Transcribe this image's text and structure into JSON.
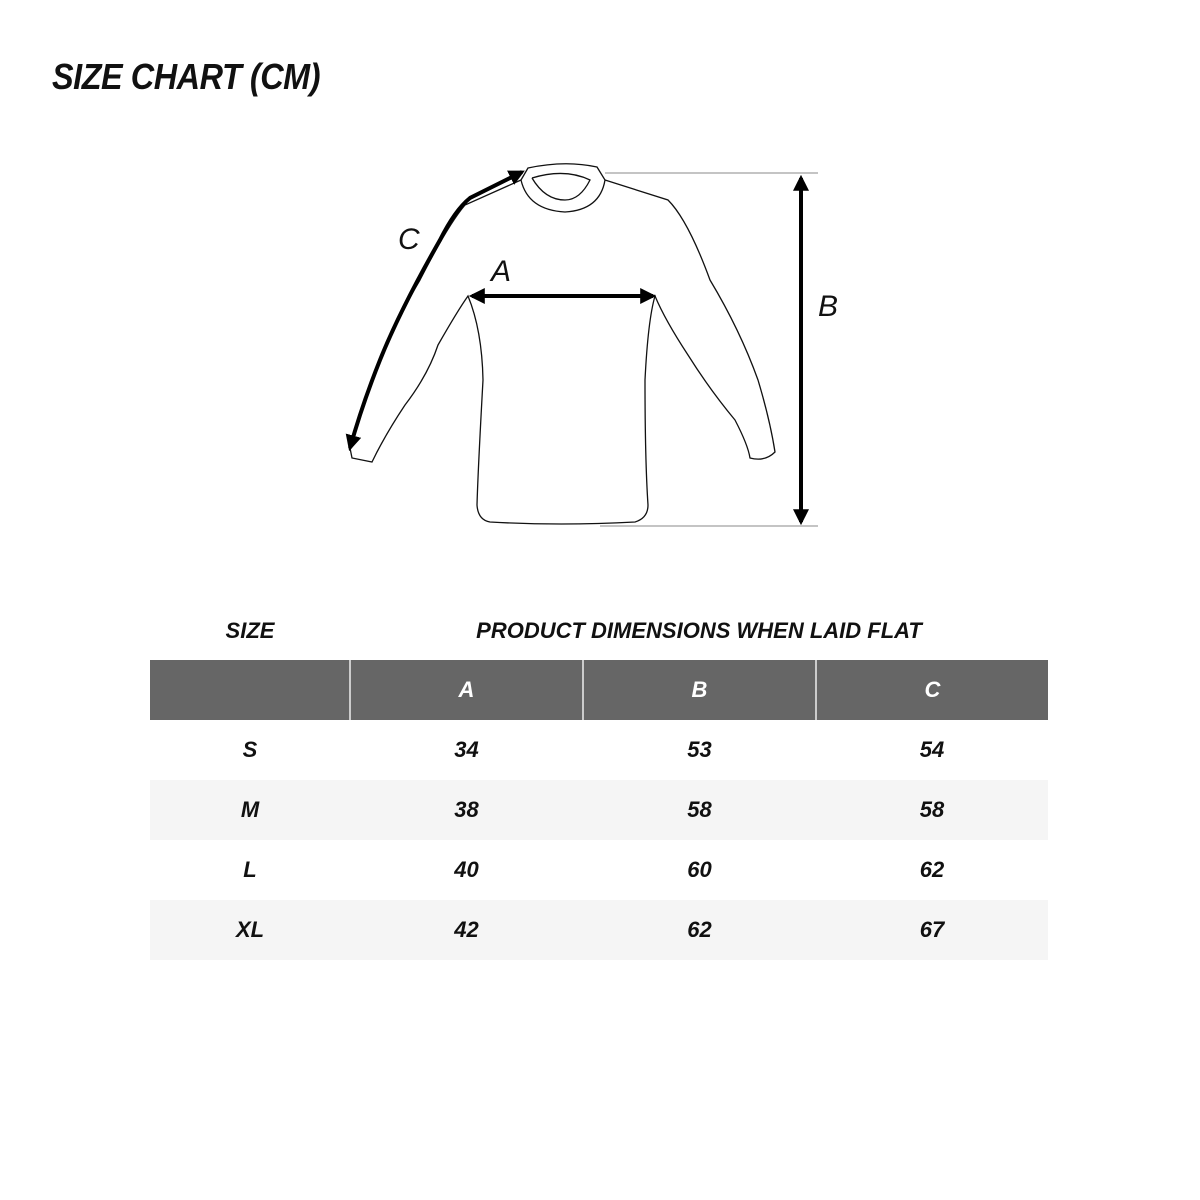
{
  "title": "SIZE CHART (CM)",
  "diagram": {
    "labels": {
      "a": "A",
      "b": "B",
      "c": "C"
    }
  },
  "table": {
    "size_caption": "SIZE",
    "dimensions_caption": "PRODUCT DIMENSIONS WHEN LAID FLAT",
    "columns": [
      "",
      "A",
      "B",
      "C"
    ],
    "rows": [
      [
        "S",
        "34",
        "53",
        "54"
      ],
      [
        "M",
        "38",
        "58",
        "58"
      ],
      [
        "L",
        "40",
        "60",
        "62"
      ],
      [
        "XL",
        "42",
        "62",
        "67"
      ]
    ],
    "header_color": "#666666",
    "alt_row_color": "#f5f5f5"
  }
}
